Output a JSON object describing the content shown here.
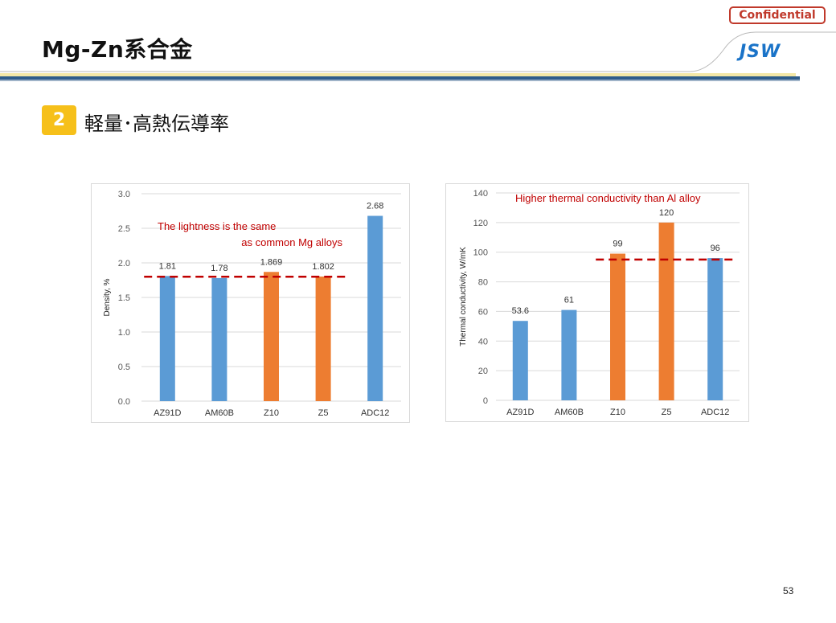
{
  "header": {
    "confidential_label": "Confidential",
    "title": "Mg-Zn系合金",
    "logo_text": "JSW"
  },
  "section": {
    "number": "2",
    "title": "軽量･高熱伝導率"
  },
  "page_number": "53",
  "colors": {
    "blue_bar": "#5b9bd5",
    "orange_bar": "#ed7d31",
    "reference_line": "#c00000",
    "annotation_text": "#c00000",
    "accent_yellow": "#f6c01a",
    "header_blue": "#2e5c8a"
  },
  "chart_data": [
    {
      "type": "bar",
      "categories": [
        "AZ91D",
        "AM60B",
        "Z10",
        "Z5",
        "ADC12"
      ],
      "values": [
        1.81,
        1.78,
        1.869,
        1.802,
        2.68
      ],
      "value_labels": [
        "1.81",
        "1.78",
        "1.869",
        "1.802",
        "2.68"
      ],
      "bar_colors": [
        "blue",
        "blue",
        "orange",
        "orange",
        "blue"
      ],
      "ylabel": "Density, %",
      "ylim": [
        0,
        3.0
      ],
      "yticks": [
        "0.0",
        "0.5",
        "1.0",
        "1.5",
        "2.0",
        "2.5",
        "3.0"
      ],
      "grid": true,
      "reference_line": {
        "value": 1.8,
        "from_category": 0,
        "to_category": 3
      },
      "annotation": [
        "The lightness is the same",
        "as common Mg alloys"
      ]
    },
    {
      "type": "bar",
      "categories": [
        "AZ91D",
        "AM60B",
        "Z10",
        "Z5",
        "ADC12"
      ],
      "values": [
        53.6,
        61,
        99,
        120,
        96
      ],
      "value_labels": [
        "53.6",
        "61",
        "99",
        "120",
        "96"
      ],
      "bar_colors": [
        "blue",
        "blue",
        "orange",
        "orange",
        "blue"
      ],
      "ylabel": "Thermal conductivity, W/mK",
      "ylim": [
        0,
        140
      ],
      "yticks": [
        "0",
        "20",
        "40",
        "60",
        "80",
        "100",
        "120",
        "140"
      ],
      "grid": true,
      "reference_line": {
        "value": 95,
        "from_category": 2,
        "to_category": 4
      },
      "annotation": [
        "Higher thermal conductivity than Al alloy"
      ]
    }
  ]
}
